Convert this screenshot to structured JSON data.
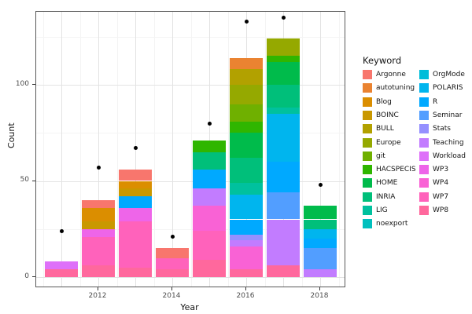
{
  "chart_data": {
    "type": "bar",
    "variant": "stacked-with-points",
    "title": "",
    "xlabel": "Year",
    "ylabel": "Count",
    "legend_title": "Keyword",
    "legend_position": "right",
    "grid": {
      "y_major": [
        0,
        50,
        100
      ],
      "y_minor": [
        25,
        75,
        125
      ]
    },
    "y_ticks": [
      {
        "label": "0",
        "value": 0
      },
      {
        "label": "50",
        "value": 50
      },
      {
        "label": "100",
        "value": 100
      }
    ],
    "x_ticks": [
      {
        "label": "2012",
        "year": 2012
      },
      {
        "label": "2014",
        "year": 2014
      },
      {
        "label": "2016",
        "year": 2016
      },
      {
        "label": "2018",
        "year": 2018
      }
    ],
    "ylim": [
      0,
      138
    ],
    "keywords": [
      {
        "name": "Argonne",
        "color": "#F8766D"
      },
      {
        "name": "autotuning",
        "color": "#EA8331"
      },
      {
        "name": "Blog",
        "color": "#DB8E00"
      },
      {
        "name": "BOINC",
        "color": "#C99800"
      },
      {
        "name": "BULL",
        "color": "#B2A100"
      },
      {
        "name": "Europe",
        "color": "#95A900"
      },
      {
        "name": "git",
        "color": "#6FB000"
      },
      {
        "name": "HACSPECIS",
        "color": "#2FB600"
      },
      {
        "name": "HOME",
        "color": "#00BB4B"
      },
      {
        "name": "INRIA",
        "color": "#00BF7A"
      },
      {
        "name": "LIG",
        "color": "#00C19E"
      },
      {
        "name": "noexport",
        "color": "#00C0BE"
      },
      {
        "name": "OrgMode",
        "color": "#00BDD9"
      },
      {
        "name": "POLARIS",
        "color": "#00B5EE"
      },
      {
        "name": "R",
        "color": "#00A9FF"
      },
      {
        "name": "Seminar",
        "color": "#529EFF"
      },
      {
        "name": "Stats",
        "color": "#9590FF"
      },
      {
        "name": "Teaching",
        "color": "#C27CFF"
      },
      {
        "name": "Workload",
        "color": "#DE70F9"
      },
      {
        "name": "WP3",
        "color": "#EE65E9"
      },
      {
        "name": "WP4",
        "color": "#F962D5"
      },
      {
        "name": "WP7",
        "color": "#FF62BB"
      },
      {
        "name": "WP8",
        "color": "#FF689D"
      }
    ],
    "bars": [
      {
        "year": 2011,
        "total": 8,
        "point": 24,
        "segments": [
          [
            "WP8",
            4
          ],
          [
            "Workload",
            4
          ]
        ]
      },
      {
        "year": 2012,
        "total": 40,
        "point": 57,
        "segments": [
          [
            "WP8",
            6
          ],
          [
            "WP7",
            15
          ],
          [
            "WP3",
            4
          ],
          [
            "BOINC",
            4
          ],
          [
            "Blog",
            7
          ],
          [
            "Argonne",
            4
          ]
        ]
      },
      {
        "year": 2013,
        "total": 56,
        "point": 67,
        "segments": [
          [
            "WP8",
            5
          ],
          [
            "WP7",
            24
          ],
          [
            "WP3",
            7
          ],
          [
            "R",
            6
          ],
          [
            "BOINC",
            4
          ],
          [
            "Blog",
            4
          ],
          [
            "Argonne",
            6
          ]
        ]
      },
      {
        "year": 2014,
        "total": 15,
        "point": 21,
        "segments": [
          [
            "WP8",
            4
          ],
          [
            "WP7",
            6
          ],
          [
            "Argonne",
            5
          ]
        ]
      },
      {
        "year": 2015,
        "total": 71,
        "point": 80,
        "segments": [
          [
            "WP8",
            9
          ],
          [
            "WP7",
            15
          ],
          [
            "WP4",
            13
          ],
          [
            "Teaching",
            9
          ],
          [
            "R",
            10
          ],
          [
            "INRIA",
            9
          ],
          [
            "HACSPECIS",
            6
          ]
        ]
      },
      {
        "year": 2016,
        "total": 114,
        "point": 133,
        "segments": [
          [
            "WP8",
            4
          ],
          [
            "WP4",
            12
          ],
          [
            "Teaching",
            3
          ],
          [
            "Stats",
            3
          ],
          [
            "R",
            8
          ],
          [
            "POLARIS",
            13
          ],
          [
            "LIG",
            6
          ],
          [
            "INRIA",
            13
          ],
          [
            "HOME",
            13
          ],
          [
            "HACSPECIS",
            6
          ],
          [
            "git",
            9
          ],
          [
            "Europe",
            10
          ],
          [
            "BULL",
            8
          ],
          [
            "autotuning",
            6
          ]
        ]
      },
      {
        "year": 2017,
        "total": 124,
        "point": 135,
        "segments": [
          [
            "WP8",
            6
          ],
          [
            "Teaching",
            24
          ],
          [
            "Seminar",
            14
          ],
          [
            "R",
            16
          ],
          [
            "POLARIS",
            25
          ],
          [
            "LIG",
            3
          ],
          [
            "INRIA",
            12
          ],
          [
            "HOME",
            12
          ],
          [
            "HACSPECIS",
            3
          ],
          [
            "Europe",
            9
          ]
        ]
      },
      {
        "year": 2018,
        "total": 37,
        "point": 48,
        "segments": [
          [
            "Teaching",
            4
          ],
          [
            "Seminar",
            11
          ],
          [
            "R",
            5
          ],
          [
            "POLARIS",
            5
          ],
          [
            "INRIA",
            5
          ],
          [
            "HOME",
            7
          ]
        ]
      }
    ]
  }
}
